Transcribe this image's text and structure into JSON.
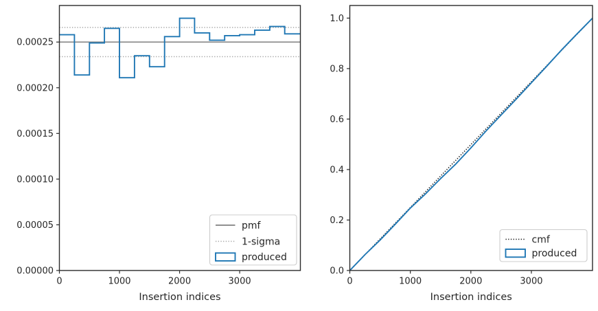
{
  "figure": {
    "background": "#ffffff",
    "colors": {
      "produced_blue": "#1f77b4",
      "pmf_gray": "#7f7f7f",
      "sigma_gray": "#a3a3a3",
      "cmf_black": "#111111",
      "spine": "#2b2b2b",
      "text": "#262626",
      "legend_border": "#cccccc",
      "legend_fill": "#ffffff"
    }
  },
  "chart_data": [
    {
      "type": "bar",
      "subtype": "step-histogram",
      "title": "",
      "xlabel": "Insertion indices",
      "ylabel": "",
      "grid": false,
      "xlim": [
        0,
        4010
      ],
      "ylim": [
        0,
        0.00029
      ],
      "xticks": [
        0,
        1000,
        2000,
        3000
      ],
      "xtick_labels": [
        "0",
        "1000",
        "2000",
        "3000"
      ],
      "yticks": [
        0,
        5e-05,
        0.0001,
        0.00015,
        0.0002,
        0.00025
      ],
      "ytick_labels": [
        "0.00000",
        "0.00005",
        "0.00010",
        "0.00015",
        "0.00020",
        "0.00025"
      ],
      "bin_edges": [
        0,
        250,
        500,
        750,
        1000,
        1250,
        1500,
        1750,
        2000,
        2250,
        2500,
        2750,
        3000,
        3250,
        3500,
        3750,
        4000
      ],
      "series": [
        {
          "name": "produced",
          "style": "step",
          "color": "#1f77b4",
          "values": [
            0.000258,
            0.000214,
            0.000249,
            0.000265,
            0.000211,
            0.000235,
            0.000223,
            0.000256,
            0.000276,
            0.00026,
            0.000252,
            0.000257,
            0.000258,
            0.000263,
            0.000267,
            0.000259
          ]
        }
      ],
      "reference_lines": [
        {
          "name": "pmf",
          "value": 0.00025,
          "style": "solid",
          "color": "#7f7f7f"
        },
        {
          "name": "sigma_upper",
          "value": 0.000266,
          "style": "dotted",
          "color": "#a3a3a3"
        },
        {
          "name": "sigma_lower",
          "value": 0.000234,
          "style": "dotted",
          "color": "#a3a3a3"
        }
      ],
      "legend": {
        "position": "lower right",
        "entries": [
          {
            "label": "pmf",
            "style": "solid",
            "color": "#7f7f7f"
          },
          {
            "label": "1-sigma",
            "style": "dotted",
            "color": "#a3a3a3"
          },
          {
            "label": "produced",
            "style": "rect",
            "color": "#1f77b4"
          }
        ]
      }
    },
    {
      "type": "line",
      "title": "",
      "xlabel": "Insertion indices",
      "ylabel": "",
      "grid": false,
      "xlim": [
        0,
        4010
      ],
      "ylim": [
        0,
        1.05
      ],
      "xticks": [
        0,
        1000,
        2000,
        3000
      ],
      "xtick_labels": [
        "0",
        "1000",
        "2000",
        "3000"
      ],
      "yticks": [
        0,
        0.2,
        0.4,
        0.6,
        0.8,
        1.0
      ],
      "ytick_labels": [
        "0.0",
        "0.2",
        "0.4",
        "0.6",
        "0.8",
        "1.0"
      ],
      "series": [
        {
          "name": "cmf",
          "style": "dotted",
          "color": "#111111",
          "x": [
            0,
            4000
          ],
          "values": [
            0,
            1.0
          ]
        },
        {
          "name": "produced",
          "style": "solid",
          "color": "#1f77b4",
          "x": [
            0,
            250,
            500,
            750,
            1000,
            1250,
            1500,
            1750,
            2000,
            2250,
            2500,
            2750,
            3000,
            3250,
            3500,
            3750,
            4000
          ],
          "values": [
            0,
            0.0625,
            0.1205,
            0.183,
            0.2475,
            0.3035,
            0.364,
            0.422,
            0.4855,
            0.5525,
            0.616,
            0.679,
            0.744,
            0.8085,
            0.874,
            0.9365,
            1.0
          ]
        }
      ],
      "legend": {
        "position": "lower right",
        "entries": [
          {
            "label": "cmf",
            "style": "dotted",
            "color": "#111111"
          },
          {
            "label": "produced",
            "style": "rect",
            "color": "#1f77b4"
          }
        ]
      }
    }
  ]
}
